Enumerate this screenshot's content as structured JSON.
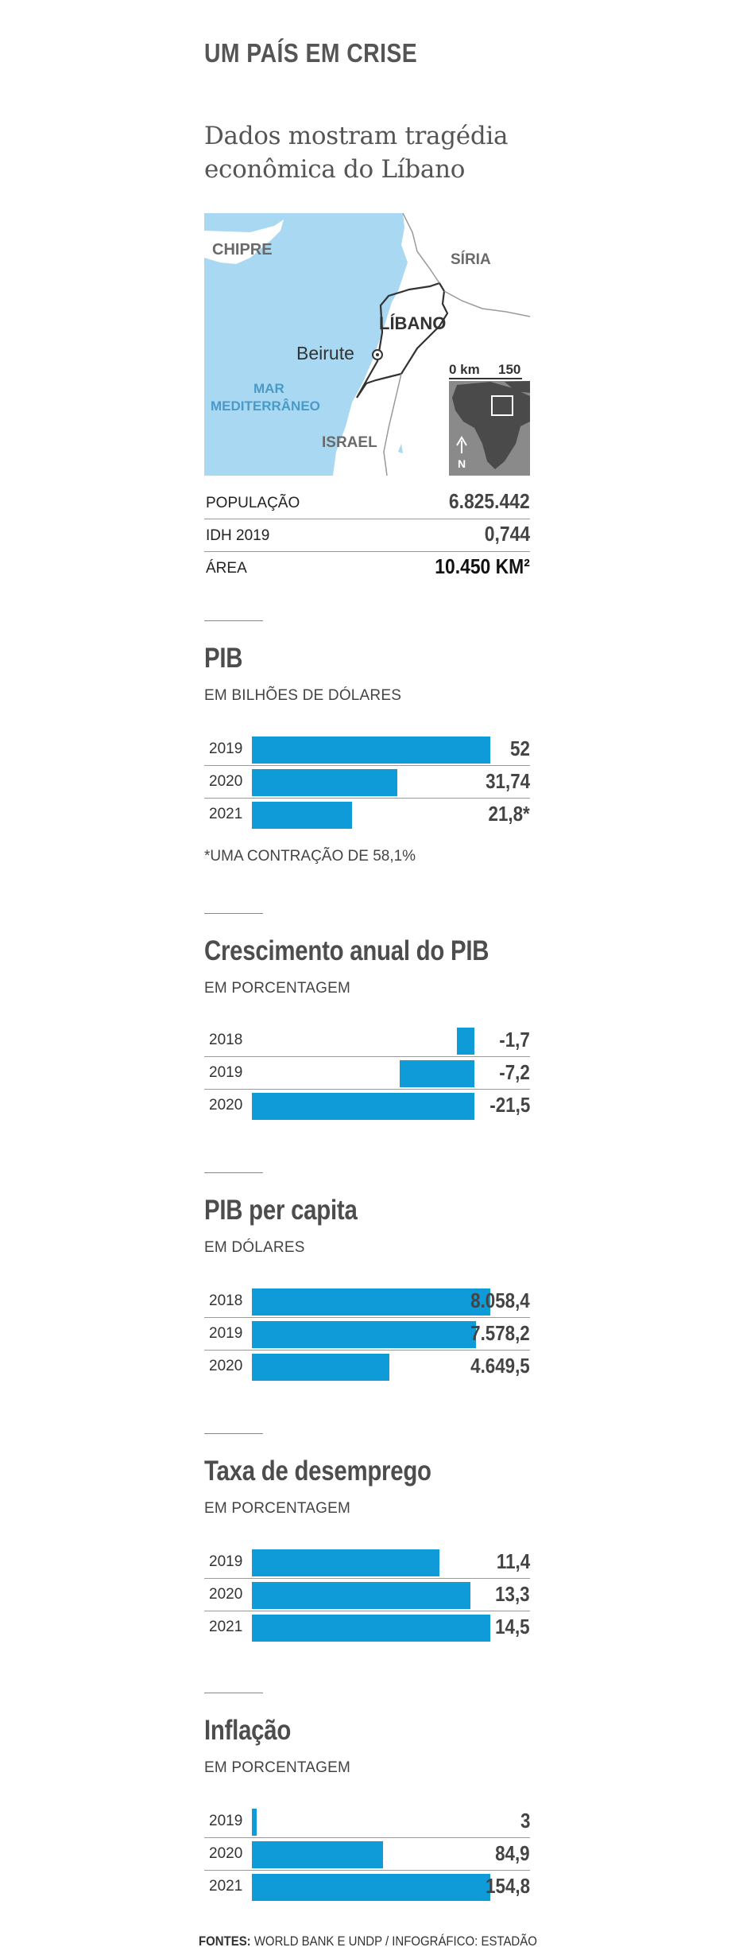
{
  "kicker": "UM PAÍS EM CRISE",
  "headline": "Dados mostram tragédia econômica do Líbano",
  "map": {
    "labels": {
      "cyprus": "CHIPRE",
      "syria": "SÍRIA",
      "lebanon": "LÍBANO",
      "beirut": "Beirute",
      "sea_line1": "MAR",
      "sea_line2": "MEDITERRÂNEO",
      "israel": "ISRAEL"
    },
    "scale": {
      "start": "0 km",
      "end": "150"
    },
    "north": "N",
    "colors": {
      "sea": "#a8d8f2",
      "land": "#ffffff",
      "inset": "#8a8a8a",
      "inset_land": "#4a4a4a"
    }
  },
  "facts": [
    {
      "label": "POPULAÇÃO",
      "value": "6.825.442"
    },
    {
      "label": "IDH 2019",
      "value": "0,744"
    },
    {
      "label": "ÁREA",
      "value": "10.450 KM²"
    }
  ],
  "colors": {
    "bar": "#0e9bd8"
  },
  "chart_data": [
    {
      "type": "bar",
      "title": "PIB",
      "subtitle": "EM BILHÕES DE DÓLARES",
      "categories": [
        "2019",
        "2020",
        "2021"
      ],
      "values": [
        52,
        31.74,
        21.8
      ],
      "labels": [
        "52",
        "31,74",
        "21,8*"
      ],
      "max": 52,
      "note": "*UMA CONTRAÇÃO DE 58,1%"
    },
    {
      "type": "bar",
      "title": "Crescimento anual do PIB",
      "subtitle": "EM PORCENTAGEM",
      "categories": [
        "2018",
        "2019",
        "2020"
      ],
      "values": [
        -1.7,
        -7.2,
        -21.5
      ],
      "labels": [
        "-1,7",
        "-7,2",
        "-21,5"
      ],
      "max": 21.5
    },
    {
      "type": "bar",
      "title": "PIB per capita",
      "subtitle": "EM DÓLARES",
      "categories": [
        "2018",
        "2019",
        "2020"
      ],
      "values": [
        8058.4,
        7578.2,
        4649.5
      ],
      "labels": [
        "8.058,4",
        "7.578,2",
        "4.649,5"
      ],
      "max": 8058.4
    },
    {
      "type": "bar",
      "title": "Taxa de desemprego",
      "subtitle": "EM PORCENTAGEM",
      "categories": [
        "2019",
        "2020",
        "2021"
      ],
      "values": [
        11.4,
        13.3,
        14.5
      ],
      "labels": [
        "11,4",
        "13,3",
        "14,5"
      ],
      "max": 14.5
    },
    {
      "type": "bar",
      "title": "Inflação",
      "subtitle": "EM PORCENTAGEM",
      "categories": [
        "2019",
        "2020",
        "2021"
      ],
      "values": [
        3,
        84.9,
        154.8
      ],
      "labels": [
        "3",
        "84,9",
        "154,8"
      ],
      "max": 154.8
    }
  ],
  "footer": {
    "prefix": "FONTES:",
    "text": " WORLD BANK E UNDP / INFOGRÁFICO: ESTADÃO"
  }
}
